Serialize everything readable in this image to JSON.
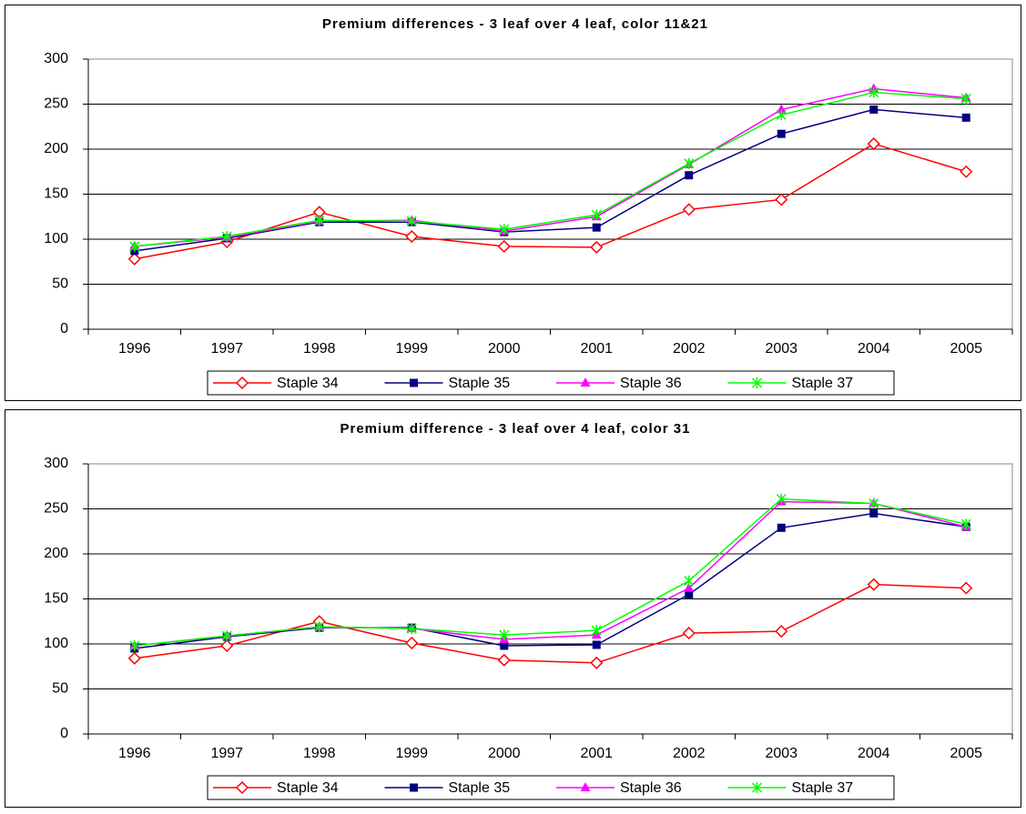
{
  "chart_data": [
    {
      "type": "line",
      "title": "Premium differences - 3 leaf over 4 leaf, color 11&21",
      "categories": [
        "1996",
        "1997",
        "1998",
        "1999",
        "2000",
        "2001",
        "2002",
        "2003",
        "2004",
        "2005"
      ],
      "ylim": [
        0,
        300
      ],
      "yticks": [
        0,
        50,
        100,
        150,
        200,
        250,
        300
      ],
      "grid": true,
      "legend": "bottom",
      "series": [
        {
          "name": "Staple 34",
          "color": "#ff0000",
          "marker": "diamond",
          "values": [
            78,
            97,
            130,
            103,
            92,
            91,
            133,
            144,
            206,
            175
          ]
        },
        {
          "name": "Staple 35",
          "color": "#000080",
          "marker": "square",
          "values": [
            87,
            101,
            119,
            119,
            108,
            113,
            171,
            217,
            244,
            235
          ]
        },
        {
          "name": "Staple 36",
          "color": "#ff00ff",
          "marker": "triangle",
          "values": [
            92,
            102,
            120,
            121,
            109,
            125,
            183,
            244,
            267,
            257
          ]
        },
        {
          "name": "Staple 37",
          "color": "#00ff00",
          "marker": "asterisk",
          "values": [
            92,
            103,
            121,
            120,
            111,
            127,
            184,
            238,
            263,
            256
          ]
        }
      ]
    },
    {
      "type": "line",
      "title": "Premium difference - 3 leaf over 4 leaf, color 31",
      "categories": [
        "1996",
        "1997",
        "1998",
        "1999",
        "2000",
        "2001",
        "2002",
        "2003",
        "2004",
        "2005"
      ],
      "ylim": [
        0,
        300
      ],
      "yticks": [
        0,
        50,
        100,
        150,
        200,
        250,
        300
      ],
      "grid": true,
      "legend": "bottom",
      "series": [
        {
          "name": "Staple 34",
          "color": "#ff0000",
          "marker": "diamond",
          "values": [
            84,
            98,
            125,
            101,
            82,
            79,
            112,
            114,
            166,
            162
          ]
        },
        {
          "name": "Staple 35",
          "color": "#000080",
          "marker": "square",
          "values": [
            95,
            108,
            118,
            118,
            98,
            99,
            155,
            229,
            245,
            230
          ]
        },
        {
          "name": "Staple 36",
          "color": "#ff00ff",
          "marker": "triangle",
          "values": [
            98,
            109,
            119,
            117,
            105,
            110,
            162,
            258,
            256,
            230
          ]
        },
        {
          "name": "Staple 37",
          "color": "#00ff00",
          "marker": "asterisk",
          "values": [
            98,
            109,
            119,
            117,
            110,
            115,
            170,
            261,
            256,
            233
          ]
        }
      ]
    }
  ]
}
